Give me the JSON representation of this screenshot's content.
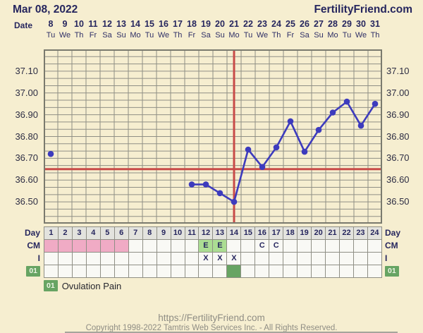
{
  "header": {
    "date": "Mar 08, 2022",
    "brand": "FertilityFriend.com"
  },
  "axis": {
    "date_row_label": "Date",
    "dates": [
      8,
      9,
      10,
      11,
      12,
      13,
      14,
      15,
      16,
      17,
      18,
      19,
      20,
      21,
      22,
      23,
      24,
      25,
      26,
      27,
      28,
      29,
      30,
      31
    ],
    "weekdays": [
      "Tu",
      "We",
      "Th",
      "Fr",
      "Sa",
      "Su",
      "Mo",
      "Tu",
      "We",
      "Th",
      "Fr",
      "Sa",
      "Su",
      "Mo",
      "Tu",
      "We",
      "Th",
      "Fr",
      "Sa",
      "Su",
      "Mo",
      "Tu",
      "We",
      "Th"
    ]
  },
  "chart_data": {
    "type": "line",
    "x_days": [
      1,
      2,
      3,
      4,
      5,
      6,
      7,
      8,
      9,
      10,
      11,
      12,
      13,
      14,
      15,
      16,
      17,
      18,
      19,
      20,
      21,
      22,
      23,
      24
    ],
    "temps_c": [
      36.72,
      null,
      null,
      null,
      null,
      null,
      null,
      null,
      null,
      null,
      36.58,
      36.58,
      36.54,
      36.5,
      36.74,
      36.66,
      36.75,
      36.87,
      36.73,
      36.83,
      36.91,
      36.96,
      36.85,
      36.95
    ],
    "y_ticks": [
      37.1,
      37.0,
      36.9,
      36.8,
      36.7,
      36.6,
      36.5
    ],
    "ylim": [
      36.4,
      37.2
    ],
    "grid": true,
    "coverline_temp": 36.65,
    "ovulation_line_day": 14
  },
  "table": {
    "day_label": "Day",
    "cm_label": "CM",
    "intercourse_label": "I",
    "intercourse_mark": "X",
    "symptom_code": "01",
    "menses_days": [
      1,
      2,
      3,
      4,
      5,
      6
    ],
    "cm_entries": [
      {
        "day": 12,
        "code": "E",
        "highlight": true
      },
      {
        "day": 13,
        "code": "E",
        "highlight": true
      },
      {
        "day": 16,
        "code": "C",
        "highlight": false
      },
      {
        "day": 17,
        "code": "C",
        "highlight": false
      }
    ],
    "intercourse_days": [
      12,
      13,
      14
    ],
    "symptom_days": [
      14
    ]
  },
  "legend": {
    "code": "01",
    "label": "Ovulation Pain"
  },
  "footer": {
    "url": "https://FertilityFriend.com",
    "copyright": "Copyright 1998-2022 Tamtris Web Services Inc. - All Rights Reserved."
  },
  "colors": {
    "background": "#f6eed0",
    "text_navy": "#26265e",
    "grid": "#8f8f85",
    "chart_border": "#7a7a6e",
    "temp_line": "#3d3bbd",
    "signal_red": "#c84b48",
    "menses_pink": "#f0abc5",
    "eggwhite_green": "#abdd93",
    "symptom_green": "#67a463"
  }
}
